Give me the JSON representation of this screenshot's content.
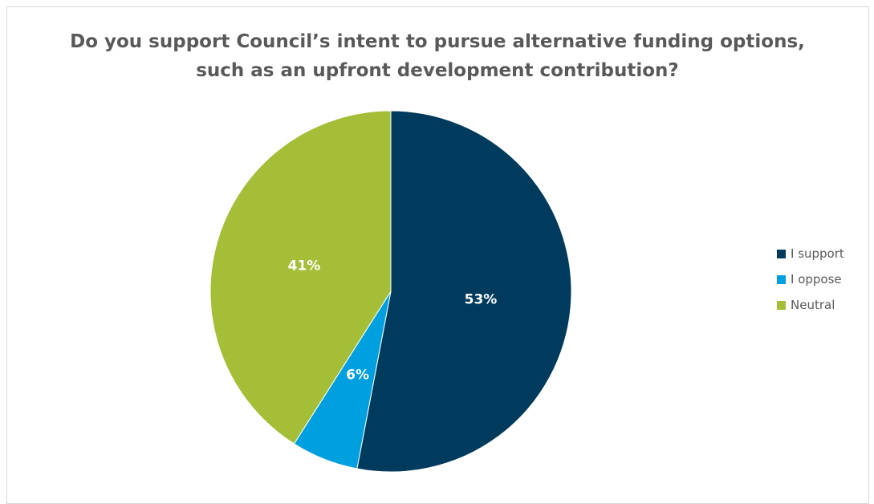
{
  "chart_data": {
    "type": "pie",
    "title": "Do you support Council’s intent to pursue alternative funding options, such as an upfront development contribution?",
    "categories": [
      "I support",
      "I oppose",
      "Neutral"
    ],
    "values": [
      53,
      6,
      41
    ],
    "value_labels": [
      "53%",
      "6%",
      "41%"
    ],
    "colors": [
      "#003a5c",
      "#00a0e0",
      "#a4bf37"
    ],
    "start_angle_deg": 0,
    "direction": "clockwise",
    "legend_position": "right"
  }
}
